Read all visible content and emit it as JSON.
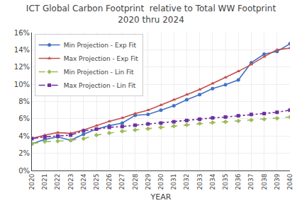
{
  "chart_data": {
    "type": "line",
    "title": "ICT Global Carbon Footprint  relative to Total WW Footprint\n2020 thru 2024",
    "x_label": "YEAR",
    "x": [
      2020,
      2021,
      2022,
      2023,
      2024,
      2025,
      2026,
      2027,
      2028,
      2029,
      2030,
      2031,
      2032,
      2033,
      2034,
      2035,
      2036,
      2037,
      2038,
      2039,
      2040
    ],
    "series": [
      {
        "name": "Min Projection - Exp Fit",
        "color": "#4472C4",
        "marker": "circle",
        "line_style": "solid",
        "values": [
          3.1,
          3.6,
          3.9,
          3.5,
          4.2,
          4.8,
          5.2,
          5.5,
          6.4,
          6.5,
          7.0,
          7.5,
          8.2,
          8.8,
          9.5,
          9.95,
          10.5,
          12.5,
          13.5,
          13.8,
          14.7
        ]
      },
      {
        "name": "Max Projection - Exp Fit",
        "color": "#C0504D",
        "marker": "triangle-up",
        "line_style": "solid",
        "values": [
          3.7,
          4.1,
          4.4,
          4.3,
          4.7,
          5.2,
          5.7,
          6.1,
          6.6,
          7.0,
          7.6,
          8.2,
          8.8,
          9.4,
          10.1,
          10.8,
          11.5,
          12.3,
          13.2,
          14.0,
          14.2
        ]
      },
      {
        "name": "Min Projection - Lin Fit",
        "color": "#9BBB59",
        "marker": "diamond",
        "line_style": "dash",
        "values": [
          3.1,
          3.35,
          3.4,
          3.5,
          3.7,
          4.1,
          4.35,
          4.55,
          4.7,
          4.85,
          5.0,
          5.15,
          5.3,
          5.45,
          5.55,
          5.65,
          5.75,
          5.85,
          5.95,
          6.05,
          6.2
        ]
      },
      {
        "name": "Max Projection - Lin Fit",
        "color": "#7030A0",
        "marker": "square",
        "line_style": "dashdot",
        "values": [
          3.7,
          3.9,
          4.0,
          4.1,
          4.6,
          4.8,
          5.0,
          5.1,
          5.25,
          5.4,
          5.5,
          5.65,
          5.8,
          5.95,
          6.1,
          6.2,
          6.35,
          6.5,
          6.6,
          6.75,
          7.0
        ]
      }
    ],
    "xlim": [
      2020,
      2040
    ],
    "xticks": [
      2020,
      2021,
      2022,
      2023,
      2024,
      2025,
      2026,
      2027,
      2028,
      2029,
      2030,
      2031,
      2032,
      2033,
      2034,
      2035,
      2036,
      2037,
      2038,
      2039,
      2040
    ],
    "ylim": [
      0,
      16
    ],
    "yticks": [
      {
        "value": 0,
        "label": "0%"
      },
      {
        "value": 2,
        "label": "2%"
      },
      {
        "value": 4,
        "label": "4%"
      },
      {
        "value": 6,
        "label": "6%"
      },
      {
        "value": 8,
        "label": "8%"
      },
      {
        "value": 10,
        "label": "10%"
      },
      {
        "value": 12,
        "label": "12%"
      },
      {
        "value": 14,
        "label": "14%"
      },
      {
        "value": 16,
        "label": "16%"
      }
    ],
    "grid": true,
    "legend": "upper left"
  }
}
